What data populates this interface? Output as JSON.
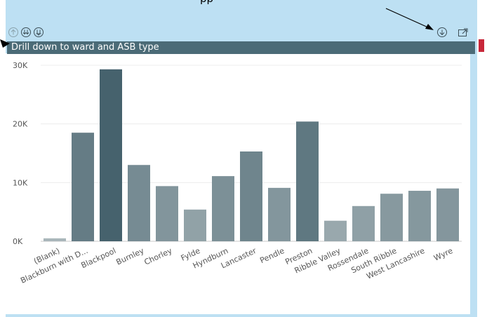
{
  "annotation": {
    "text": "pp"
  },
  "visual": {
    "title": "Drill down to ward and ASB type",
    "header_icons": [
      "drill-up-icon",
      "expand-next-level-icon",
      "expand-all-icon"
    ],
    "right_icons": [
      "drill-down-icon",
      "focus-mode-icon"
    ]
  },
  "chart_data": {
    "type": "bar",
    "title": "Drill down to ward and ASB type",
    "categories": [
      "(Blank)",
      "Blackburn with D...",
      "Blackpool",
      "Burnley",
      "Chorley",
      "Fylde",
      "Hyndburn",
      "Lancaster",
      "Pendle",
      "Preston",
      "Ribble Valley",
      "Rossendale",
      "South Ribble",
      "West Lancashire",
      "Wyre"
    ],
    "values": [
      500,
      18500,
      29300,
      13000,
      9400,
      5400,
      11100,
      15300,
      9100,
      20400,
      3500,
      6000,
      8100,
      8600,
      9000
    ],
    "y_ticks": [
      "0K",
      "10K",
      "20K",
      "30K"
    ],
    "ylim": [
      0,
      30000
    ],
    "grid": true,
    "colors": {
      "dark": "#46626d",
      "mid": "#6b8890",
      "light": "#a9b6ba"
    }
  }
}
